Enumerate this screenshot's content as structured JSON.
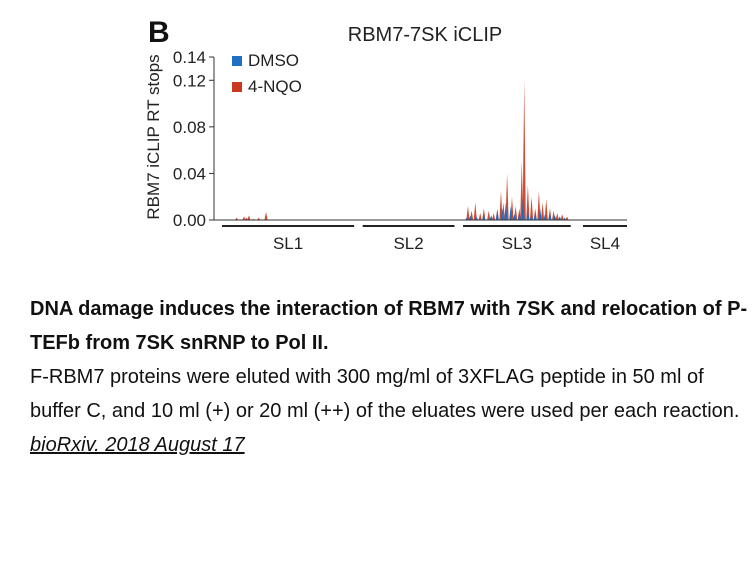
{
  "figure": {
    "panel_label": "B",
    "colors": {
      "dmso": "#1f6fc2",
      "nqo": "#c9391f"
    }
  },
  "chart_data": {
    "type": "area",
    "title": "RBM7-7SK iCLIP",
    "ylabel": "RBM7 iCLIP RT stops",
    "xlabel": "",
    "ylim": [
      0,
      0.14
    ],
    "yticks": [
      "0.00",
      "0.04",
      "0.08",
      "0.12",
      "0.14"
    ],
    "xlim": [
      0,
      331
    ],
    "grid": false,
    "legend_position": "top-left",
    "regions": [
      {
        "label": "SL1",
        "start": 0,
        "end": 108
      },
      {
        "label": "SL2",
        "start": 115,
        "end": 190
      },
      {
        "label": "SL3",
        "start": 197,
        "end": 285
      },
      {
        "label": "SL4",
        "start": 295,
        "end": 331
      }
    ],
    "series": [
      {
        "name": "DMSO",
        "x": [
          200,
          203,
          208,
          214,
          220,
          225,
          229,
          232,
          236,
          239,
          243,
          246,
          250,
          253,
          256,
          260,
          264,
          268,
          272,
          276,
          280
        ],
        "values": [
          0.002,
          0.004,
          0.003,
          0.005,
          0.004,
          0.008,
          0.01,
          0.015,
          0.012,
          0.005,
          0.006,
          0.02,
          0.008,
          0.004,
          0.006,
          0.01,
          0.005,
          0.006,
          0.004,
          0.003,
          0.002
        ]
      },
      {
        "name": "4-NQO",
        "x": [
          12,
          18,
          20,
          22,
          26,
          30,
          36,
          201,
          204,
          207,
          211,
          214,
          218,
          222,
          225,
          228,
          230,
          233,
          237,
          240,
          243,
          245,
          247,
          250,
          253,
          256,
          259,
          262,
          265,
          268,
          271,
          274,
          278,
          282
        ],
        "values": [
          0.002,
          0.003,
          0.002,
          0.004,
          0.001,
          0.002,
          0.007,
          0.012,
          0.008,
          0.015,
          0.006,
          0.01,
          0.008,
          0.006,
          0.01,
          0.025,
          0.015,
          0.04,
          0.02,
          0.012,
          0.01,
          0.05,
          0.12,
          0.03,
          0.02,
          0.01,
          0.025,
          0.015,
          0.018,
          0.01,
          0.008,
          0.006,
          0.005,
          0.003
        ]
      }
    ]
  },
  "caption": {
    "title": "DNA damage induces the interaction of RBM7 with 7SK and relocation of P-TEFb from 7SK snRNP to Pol II.",
    "body": "F-RBM7 proteins were eluted with 300 mg/ml of 3XFLAG peptide in 50 ml of buffer C, and 10 ml (+) or 20 ml (++) of the eluates were used per each reaction. ",
    "citation": "bioRxiv. 2018 August 17"
  }
}
